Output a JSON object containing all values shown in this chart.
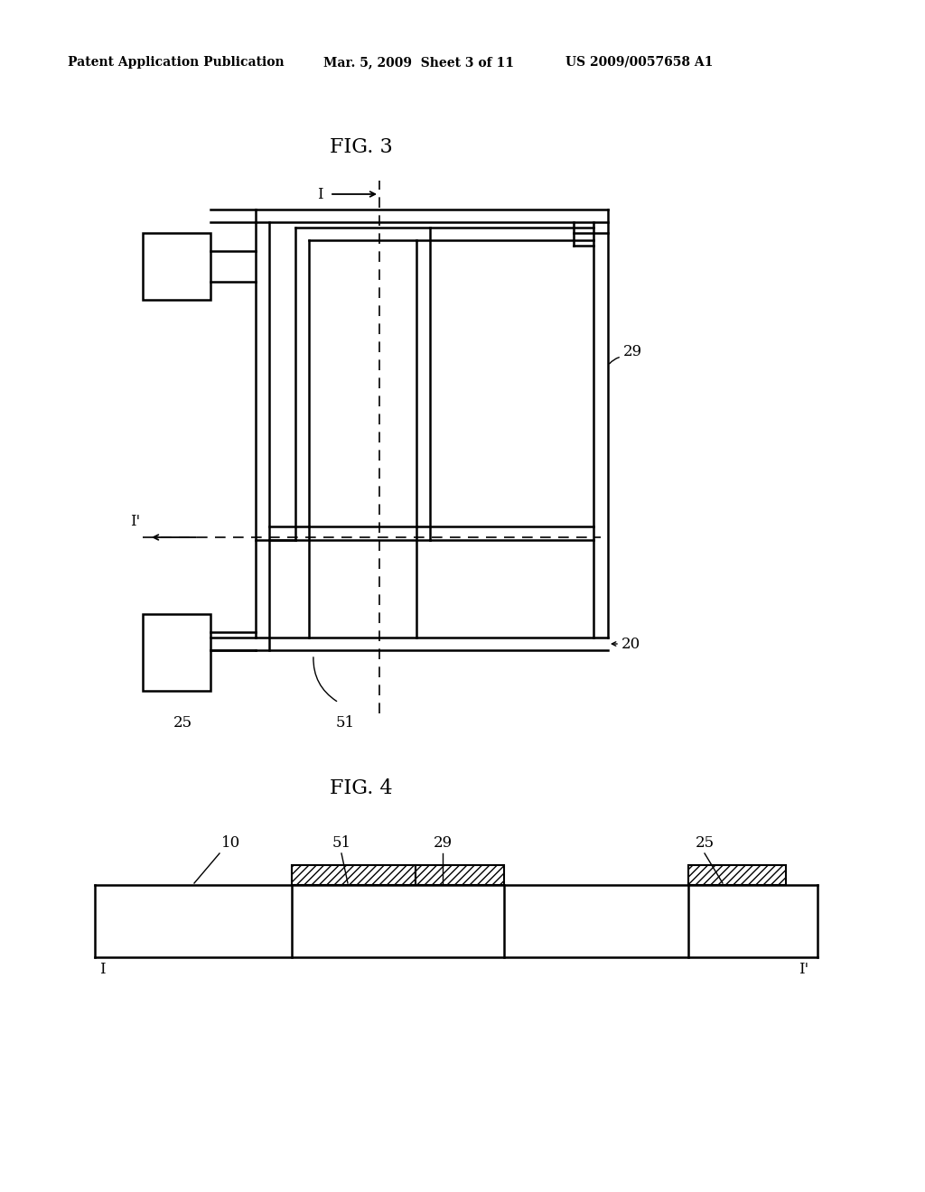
{
  "fig3_title": "FIG. 3",
  "fig4_title": "FIG. 4",
  "header_left": "Patent Application Publication",
  "header_mid": "Mar. 5, 2009  Sheet 3 of 11",
  "header_right": "US 2009/0057658 A1",
  "bg_color": "#ffffff",
  "line_color": "#000000",
  "label_I": "I",
  "label_Iprime": "I'",
  "label_25": "25",
  "label_51": "51",
  "label_29": "29",
  "label_20": "20",
  "label_10": "10"
}
